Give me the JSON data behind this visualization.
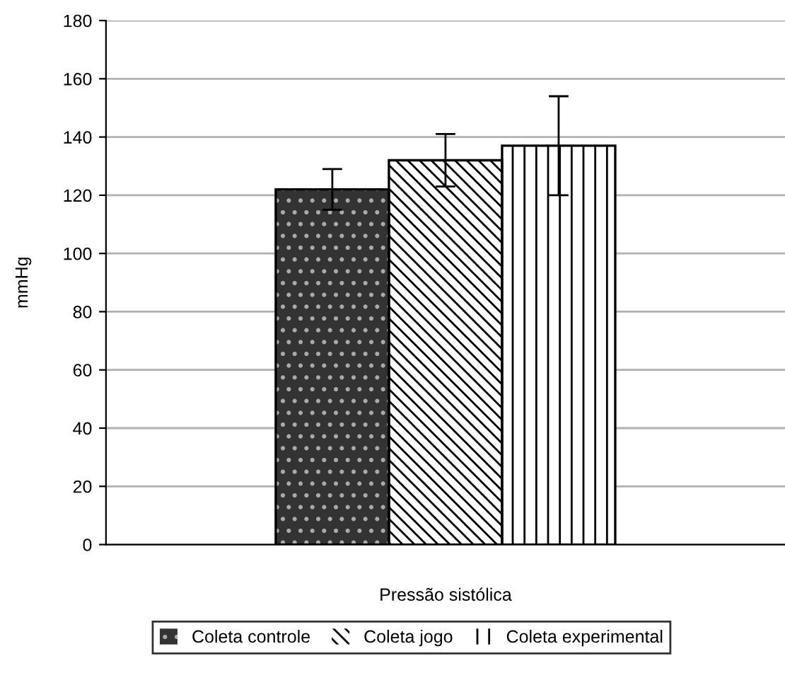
{
  "chart_data": {
    "type": "bar",
    "categories": [
      "Pressão sistólica"
    ],
    "ylabel": "mmHg",
    "series": [
      {
        "name": "Coleta controle",
        "color": "#333333",
        "values": [
          122
        ],
        "errors": [
          7
        ]
      },
      {
        "name": "Coleta jogo",
        "color": "#ffffff",
        "values": [
          132
        ],
        "errors": [
          9
        ]
      },
      {
        "name": "Coleta experimental",
        "color": "#ffffff",
        "values": [
          137
        ],
        "errors": [
          17
        ]
      }
    ],
    "ylim": [
      0,
      180
    ],
    "yticks": [
      0,
      20,
      40,
      60,
      80,
      100,
      120,
      140,
      160,
      180
    ],
    "grid": "y",
    "legend": "bottom"
  }
}
